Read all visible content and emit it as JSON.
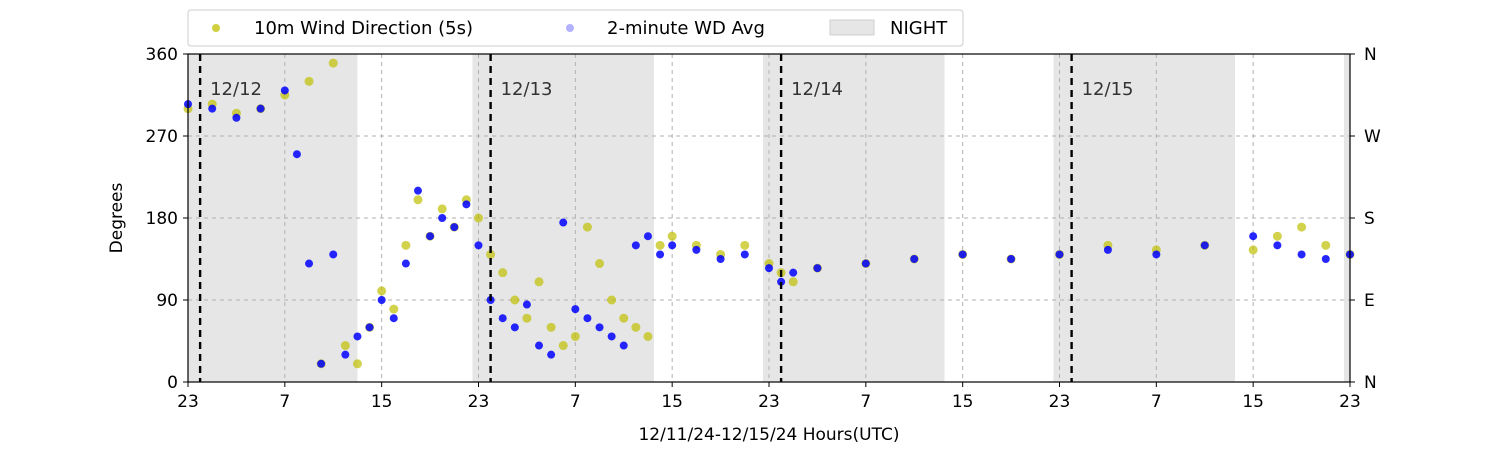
{
  "chart_data": {
    "type": "scatter",
    "title": "",
    "xlabel": "12/11/24-12/15/24  Hours(UTC)",
    "ylabel": "Degrees",
    "ylim": [
      0,
      360
    ],
    "xlim_hours_from_12_11_23utc": [
      0,
      96
    ],
    "x_tick_hours": [
      0,
      8,
      16,
      24,
      32,
      40,
      48,
      56,
      64,
      72,
      80,
      88,
      96
    ],
    "x_tick_labels": [
      "23",
      "7",
      "15",
      "23",
      "7",
      "15",
      "23",
      "7",
      "15",
      "23",
      "7",
      "15",
      "23"
    ],
    "y_ticks": [
      0,
      90,
      180,
      270,
      360
    ],
    "y_tick_labels": [
      "0",
      "90",
      "180",
      "270",
      "360"
    ],
    "right_ticks": [
      0,
      90,
      180,
      270,
      360
    ],
    "right_tick_labels": [
      "N",
      "E",
      "S",
      "W",
      "N"
    ],
    "grid": true,
    "legend": {
      "placement": "top-left, above plot",
      "entries": [
        {
          "label": "10m Wind Direction (5s)",
          "color": "#bfbf00"
        },
        {
          "label": "2-minute WD Avg",
          "color": "#0000ff"
        },
        {
          "label": "NIGHT",
          "color": "#e6e6e6"
        }
      ]
    },
    "day_markers": [
      {
        "hour": 1,
        "label": "12/12"
      },
      {
        "hour": 25,
        "label": "12/13"
      },
      {
        "hour": 49,
        "label": "12/14"
      },
      {
        "hour": 73,
        "label": "12/15"
      }
    ],
    "night_periods_hours": [
      [
        0,
        14
      ],
      [
        23.5,
        38.5
      ],
      [
        47.5,
        62.5
      ],
      [
        71.5,
        86.5
      ],
      [
        95.5,
        96
      ]
    ],
    "series": [
      {
        "name": "10m Wind Direction (5s)",
        "color": "#bfbf00",
        "x_hours": [
          0,
          2,
          4,
          6,
          8,
          10,
          11,
          12,
          13,
          14,
          15,
          16,
          17,
          18,
          19,
          20,
          21,
          22,
          23,
          24,
          25,
          26,
          27,
          28,
          29,
          30,
          31,
          32,
          33,
          34,
          35,
          36,
          37,
          38,
          39,
          40,
          42,
          44,
          46,
          48,
          49,
          50,
          52,
          56,
          60,
          64,
          68,
          72,
          76,
          80,
          84,
          88,
          90,
          92,
          94,
          96
        ],
        "y_deg": [
          300,
          305,
          295,
          300,
          315,
          330,
          20,
          350,
          40,
          20,
          60,
          100,
          80,
          150,
          200,
          160,
          190,
          170,
          200,
          180,
          140,
          120,
          90,
          70,
          110,
          60,
          40,
          50,
          170,
          130,
          90,
          70,
          60,
          50,
          150,
          160,
          150,
          140,
          150,
          130,
          120,
          110,
          125,
          130,
          135,
          140,
          135,
          140,
          150,
          145,
          150,
          145,
          160,
          170,
          150,
          140
        ]
      },
      {
        "name": "2-minute WD Avg",
        "color": "#0000ff",
        "x_hours": [
          0,
          2,
          4,
          6,
          8,
          9,
          10,
          11,
          12,
          13,
          14,
          15,
          16,
          17,
          18,
          19,
          20,
          21,
          22,
          23,
          24,
          25,
          26,
          27,
          28,
          29,
          30,
          31,
          32,
          33,
          34,
          35,
          36,
          37,
          38,
          39,
          40,
          42,
          44,
          46,
          48,
          49,
          50,
          52,
          56,
          60,
          64,
          68,
          72,
          76,
          80,
          84,
          88,
          90,
          92,
          94,
          96
        ],
        "y_deg": [
          305,
          300,
          290,
          300,
          320,
          250,
          130,
          20,
          140,
          30,
          50,
          60,
          90,
          70,
          130,
          210,
          160,
          180,
          170,
          195,
          150,
          90,
          70,
          60,
          85,
          40,
          30,
          175,
          80,
          70,
          60,
          50,
          40,
          150,
          160,
          140,
          150,
          145,
          135,
          140,
          125,
          110,
          120,
          125,
          130,
          135,
          140,
          135,
          140,
          145,
          140,
          150,
          160,
          150,
          140,
          135,
          140
        ]
      }
    ]
  }
}
